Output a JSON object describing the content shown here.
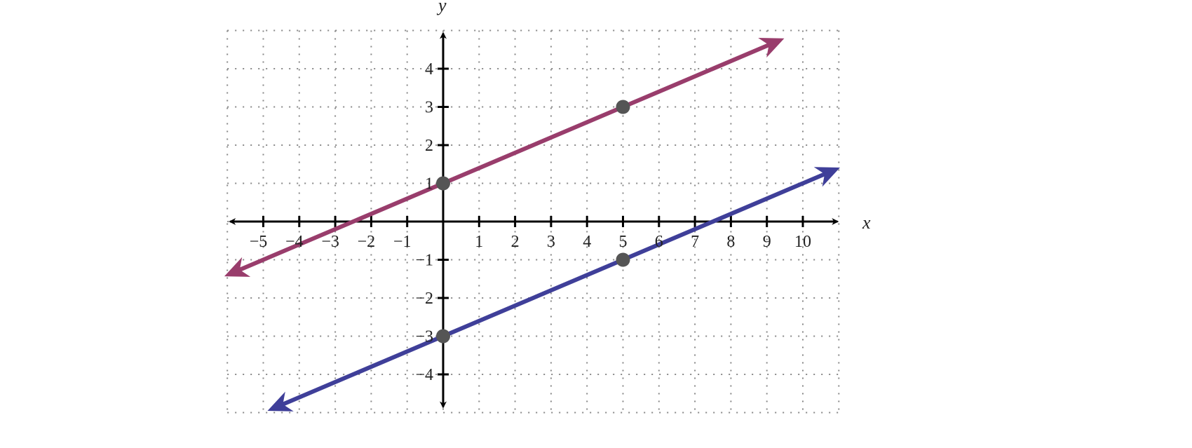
{
  "chart_data": {
    "type": "line",
    "title": "",
    "xlabel": "x",
    "ylabel": "y",
    "xlim": [
      -6,
      11
    ],
    "ylim": [
      -5,
      5
    ],
    "grid": true,
    "grid_style": "dotted",
    "x_ticks": [
      -5,
      -4,
      -3,
      -2,
      -1,
      1,
      2,
      3,
      4,
      5,
      6,
      7,
      8,
      9,
      10
    ],
    "x_tick_labels": [
      "−5",
      "−4",
      "−3",
      "−2",
      "−1",
      "1",
      "2",
      "3",
      "4",
      "5",
      "6",
      "7",
      "8",
      "9",
      "10"
    ],
    "y_ticks": [
      4,
      3,
      2,
      1,
      -1,
      -2,
      -3,
      -4
    ],
    "y_tick_labels": [
      "4",
      "3",
      "2",
      "1",
      "−1",
      "−2",
      "−3",
      "−4"
    ],
    "series": [
      {
        "color": "#993d6c",
        "equation_slope": 0.4,
        "equation_intercept": 1,
        "x_range": [
          -5.9,
          9.3
        ],
        "points": [
          [
            0,
            1
          ],
          [
            5,
            3
          ]
        ]
      },
      {
        "color": "#3f3f99",
        "equation_slope": 0.4,
        "equation_intercept": -3,
        "x_range": [
          -4.7,
          10.85
        ],
        "points": [
          [
            0,
            -3
          ],
          [
            5,
            -1
          ]
        ]
      }
    ],
    "point_color": "#555555"
  }
}
